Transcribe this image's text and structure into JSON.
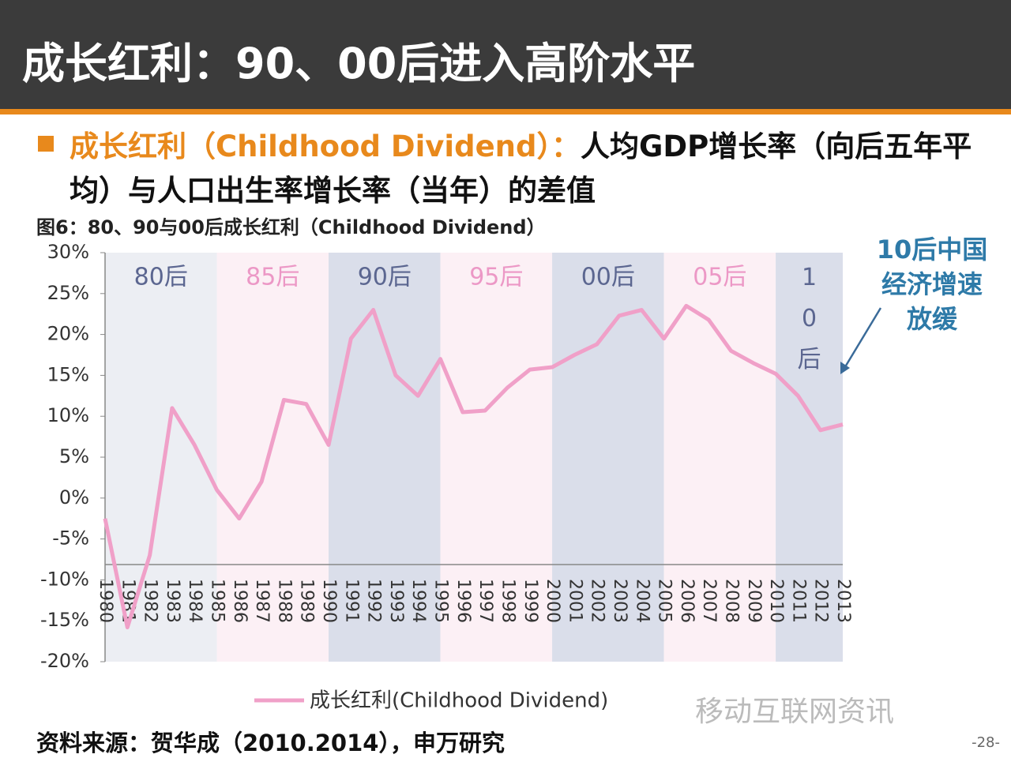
{
  "header": {
    "title": "成长红利：90、00后进入高阶水平"
  },
  "bullet": {
    "label": "成长红利（Childhood Dividend）：",
    "text": "人均GDP增长率（向后五年平均）与人口出生率增长率（当年）的差值"
  },
  "chart_data": {
    "type": "line",
    "title": "图6：80、90与00后成长红利（Childhood Dividend）",
    "categories": [
      "1980",
      "1981",
      "1982",
      "1983",
      "1984",
      "1985",
      "1986",
      "1987",
      "1988",
      "1989",
      "1990",
      "1991",
      "1992",
      "1993",
      "1994",
      "1995",
      "1996",
      "1997",
      "1998",
      "1999",
      "2000",
      "2001",
      "2002",
      "2003",
      "2004",
      "2005",
      "2006",
      "2007",
      "2008",
      "2009",
      "2010",
      "2011",
      "2012",
      "2013"
    ],
    "series": [
      {
        "name": "成长红利(Childhood Dividend)",
        "color": "#f0a0c8",
        "values": [
          -2.5,
          -15.8,
          -7,
          11,
          6.5,
          1,
          -2.5,
          2,
          12,
          11.5,
          6.5,
          19.5,
          23,
          15,
          12.5,
          17,
          10.5,
          10.7,
          13.5,
          15.7,
          16,
          17.5,
          18.8,
          22.3,
          23,
          19.5,
          23.5,
          21.8,
          18,
          16.5,
          15.2,
          12.5,
          8.3,
          9
        ]
      }
    ],
    "ylim": [
      -20,
      30
    ],
    "yticks": [
      {
        "value": 30,
        "label": "30%"
      },
      {
        "value": 25,
        "label": "25%"
      },
      {
        "value": 20,
        "label": "20%"
      },
      {
        "value": 15,
        "label": "15%"
      },
      {
        "value": 10,
        "label": "10%"
      },
      {
        "value": 5,
        "label": "5%"
      },
      {
        "value": 0,
        "label": "0%"
      },
      {
        "value": -5,
        "label": "-5%"
      },
      {
        "value": -10,
        "label": "-10%"
      },
      {
        "value": -15,
        "label": "-15%"
      },
      {
        "value": -20,
        "label": "-20%"
      }
    ],
    "bands": [
      {
        "label": "80后",
        "color": "#eceef3"
      },
      {
        "label": "85后",
        "color": "#fcf0f5"
      },
      {
        "label": "90后",
        "color": "#dadeea"
      },
      {
        "label": "95后",
        "color": "#fcf0f5"
      },
      {
        "label": "00后",
        "color": "#dadeea"
      },
      {
        "label": "05后",
        "color": "#fcf0f5"
      },
      {
        "label": "10后",
        "color": "#dadeea"
      }
    ],
    "annotation": [
      "10后中国",
      "经济增速",
      "放缓"
    ]
  },
  "source": "资料来源：贺华成（2010.2014），申万研究",
  "page": "-28-",
  "watermark": "移动互联网资讯"
}
